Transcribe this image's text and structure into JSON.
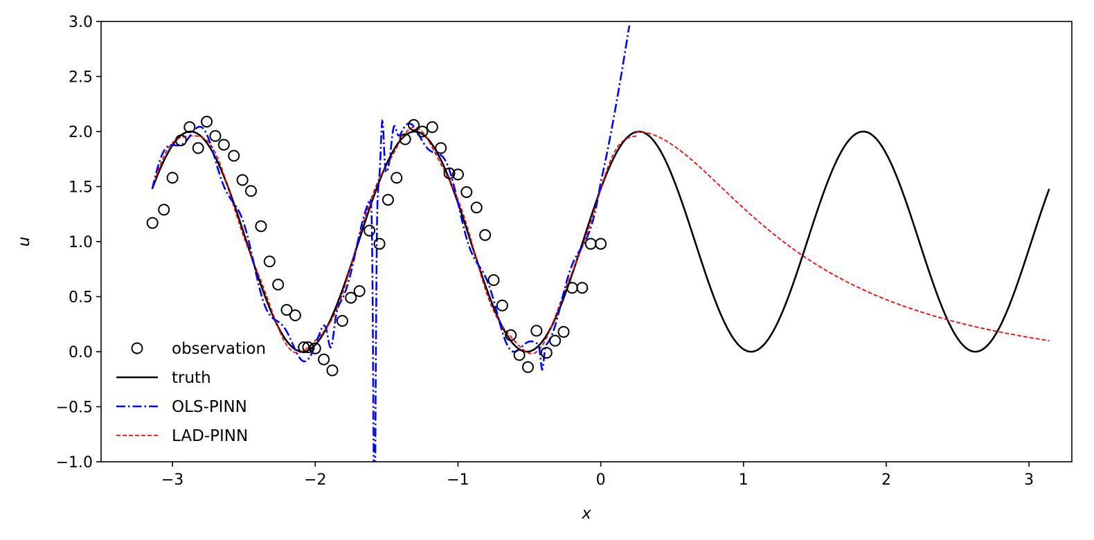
{
  "chart_data": {
    "type": "line",
    "xlabel": "x",
    "ylabel": "u",
    "xlim": [
      -3.5,
      3.3
    ],
    "ylim": [
      -1.0,
      3.0
    ],
    "x_ticks": [
      -3,
      -2,
      -1,
      0,
      1,
      2,
      3
    ],
    "y_ticks": [
      -1.0,
      -0.5,
      0.0,
      0.5,
      1.0,
      1.5,
      2.0,
      2.5,
      3.0
    ],
    "x_tick_labels": [
      "−3",
      "−2",
      "−1",
      "0",
      "1",
      "2",
      "3"
    ],
    "y_tick_labels": [
      "−1.0",
      "−0.5",
      "0.0",
      "0.5",
      "1.0",
      "1.5",
      "2.0",
      "2.5",
      "3.0"
    ],
    "grid": false,
    "legend_position": "lower-left",
    "colors": {
      "observation": "#000000",
      "truth": "#000000",
      "ols": "#0000ff",
      "lad": "#ff0000"
    },
    "series": [
      {
        "name": "observation",
        "kind": "scatter",
        "x": [
          -3.14,
          -3.06,
          -3.0,
          -2.94,
          -2.88,
          -2.82,
          -2.76,
          -2.7,
          -2.64,
          -2.57,
          -2.51,
          -2.45,
          -2.38,
          -2.32,
          -2.26,
          -2.2,
          -2.14,
          -2.08,
          -2.05,
          -2.0,
          -1.94,
          -1.88,
          -1.81,
          -1.75,
          -1.69,
          -1.62,
          -1.55,
          -1.49,
          -1.43,
          -1.37,
          -1.31,
          -1.25,
          -1.18,
          -1.12,
          -1.06,
          -1.0,
          -0.94,
          -0.87,
          -0.81,
          -0.75,
          -0.69,
          -0.63,
          -0.57,
          -0.51,
          -0.45,
          -0.38,
          -0.32,
          -0.26,
          -0.2,
          -0.13,
          -0.07,
          0.0
        ],
        "y": [
          1.17,
          1.29,
          1.58,
          1.92,
          2.04,
          1.85,
          2.09,
          1.96,
          1.88,
          1.78,
          1.56,
          1.46,
          1.14,
          0.82,
          0.61,
          0.38,
          0.33,
          0.04,
          0.04,
          0.03,
          -0.07,
          -0.17,
          0.28,
          0.49,
          0.55,
          1.1,
          0.98,
          1.38,
          1.58,
          1.93,
          2.06,
          2.0,
          2.04,
          1.85,
          1.62,
          1.61,
          1.45,
          1.31,
          1.06,
          0.65,
          0.42,
          0.15,
          -0.03,
          -0.14,
          0.19,
          -0.01,
          0.1,
          0.18,
          0.58,
          0.58,
          0.98,
          0.98
        ]
      },
      {
        "name": "truth",
        "kind": "line",
        "style": "solid"
      },
      {
        "name": "OLS-PINN",
        "kind": "line",
        "style": "dash-dot"
      },
      {
        "name": "LAD-PINN",
        "kind": "line",
        "style": "dashed"
      }
    ]
  }
}
